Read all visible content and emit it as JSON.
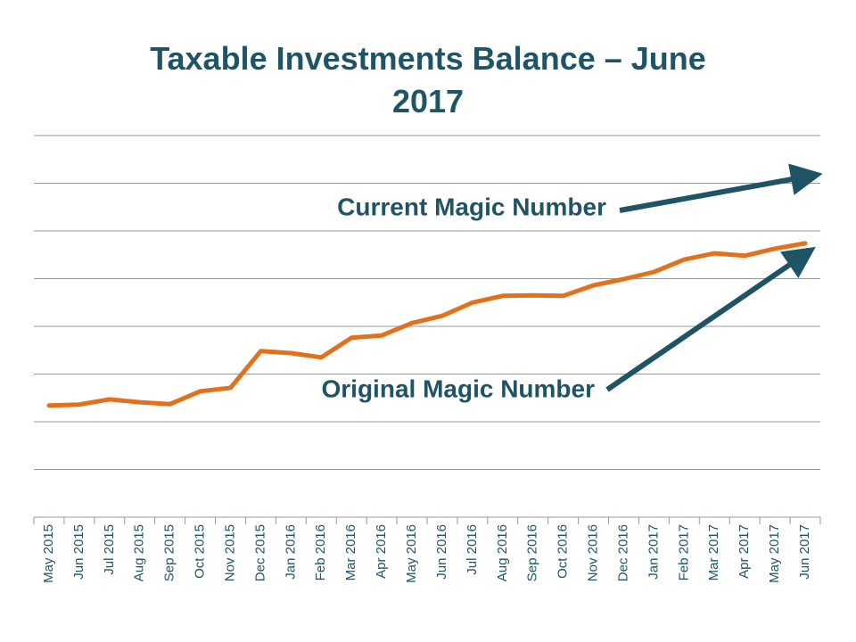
{
  "chart_data": {
    "type": "line",
    "title": "Taxable Investments Balance – June 2017",
    "categories": [
      "May 2015",
      "Jun 2015",
      "Jul 2015",
      "Aug 2015",
      "Sep 2015",
      "Oct 2015",
      "Nov 2015",
      "Dec 2015",
      "Jan 2016",
      "Feb 2016",
      "Mar 2016",
      "Apr 2016",
      "May 2016",
      "Jun 2016",
      "Jul 2016",
      "Aug 2016",
      "Sep 2016",
      "Oct 2016",
      "Nov 2016",
      "Dec 2016",
      "Jan 2017",
      "Feb 2017",
      "Mar 2017",
      "Apr 2017",
      "May 2017",
      "Jun 2017"
    ],
    "values": [
      2.34,
      2.36,
      2.47,
      2.41,
      2.37,
      2.64,
      2.71,
      3.48,
      3.44,
      3.35,
      3.76,
      3.81,
      4.07,
      4.22,
      4.5,
      4.64,
      4.65,
      4.64,
      4.86,
      4.99,
      5.14,
      5.4,
      5.53,
      5.48,
      5.63,
      5.74
    ],
    "color": "#e2711d",
    "ylim": [
      0,
      8
    ],
    "yticks": [
      0,
      1,
      2,
      3,
      4,
      5,
      6,
      7,
      8
    ],
    "ytick_labels": false,
    "grid": true,
    "annotations": [
      "Current Magic Number",
      "Original Magic Number"
    ]
  }
}
